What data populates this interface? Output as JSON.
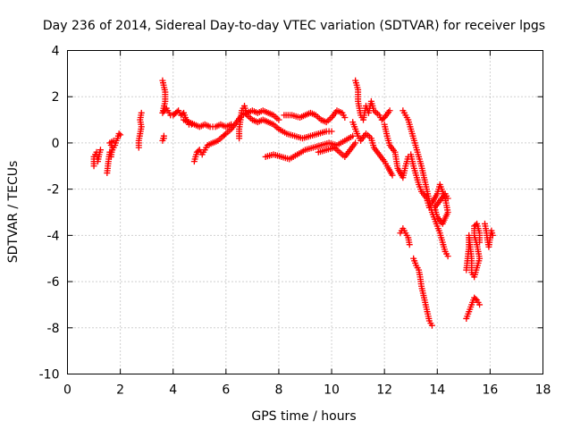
{
  "chart_data": {
    "type": "scatter",
    "title": "Day 236 of 2014, Sidereal Day-to-day VTEC variation (SDTVAR) for receiver lpgs",
    "xlabel": "GPS time / hours",
    "ylabel": "SDTVAR / TECUs",
    "xlim": [
      0,
      18
    ],
    "ylim": [
      -10,
      4
    ],
    "xticks": [
      0,
      2,
      4,
      6,
      8,
      10,
      12,
      14,
      16,
      18
    ],
    "yticks": [
      -10,
      -8,
      -6,
      -4,
      -2,
      0,
      2,
      4
    ],
    "grid": true,
    "marker": "+",
    "series": [
      {
        "name": "SDTVAR",
        "color": "#ff0000",
        "segments": [
          [
            [
              1.0,
              -1.0
            ],
            [
              1.0,
              -0.6
            ],
            [
              1.1,
              -0.4
            ],
            [
              1.15,
              -0.8
            ],
            [
              1.2,
              -0.5
            ],
            [
              1.25,
              -0.3
            ]
          ],
          [
            [
              1.5,
              -1.3
            ],
            [
              1.55,
              -0.8
            ],
            [
              1.6,
              -0.4
            ],
            [
              1.65,
              -0.6
            ],
            [
              1.7,
              -0.2
            ],
            [
              1.6,
              0.0
            ],
            [
              1.75,
              0.1
            ]
          ],
          [
            [
              1.6,
              -0.5
            ],
            [
              1.7,
              -0.3
            ],
            [
              1.8,
              -0.1
            ],
            [
              1.85,
              0.1
            ],
            [
              1.9,
              0.2
            ],
            [
              1.95,
              0.4
            ],
            [
              2.0,
              0.35
            ]
          ],
          [
            [
              2.7,
              -0.2
            ],
            [
              2.7,
              0.1
            ],
            [
              2.75,
              0.4
            ],
            [
              2.8,
              0.7
            ],
            [
              2.75,
              1.0
            ],
            [
              2.8,
              1.3
            ]
          ],
          [
            [
              3.6,
              0.1
            ],
            [
              3.65,
              0.3
            ],
            [
              3.65,
              0.2
            ]
          ],
          [
            [
              3.6,
              2.7
            ],
            [
              3.7,
              2.2
            ],
            [
              3.7,
              1.8
            ],
            [
              3.6,
              1.3
            ],
            [
              3.75,
              1.5
            ],
            [
              3.8,
              1.4
            ],
            [
              3.9,
              1.2
            ],
            [
              4.0,
              1.2
            ],
            [
              4.1,
              1.3
            ],
            [
              4.2,
              1.4
            ],
            [
              4.3,
              1.2
            ],
            [
              4.4,
              1.3
            ],
            [
              4.5,
              1.0
            ],
            [
              4.6,
              0.8
            ],
            [
              4.7,
              0.8
            ]
          ],
          [
            [
              4.8,
              -0.8
            ],
            [
              4.9,
              -0.4
            ],
            [
              5.0,
              -0.3
            ],
            [
              5.1,
              -0.5
            ],
            [
              5.2,
              -0.3
            ],
            [
              5.3,
              -0.1
            ],
            [
              5.5,
              0.0
            ],
            [
              5.7,
              0.1
            ],
            [
              5.9,
              0.3
            ],
            [
              6.0,
              0.4
            ],
            [
              6.2,
              0.6
            ],
            [
              6.4,
              0.9
            ],
            [
              6.6,
              1.2
            ],
            [
              6.8,
              1.3
            ],
            [
              7.0,
              1.4
            ],
            [
              7.2,
              1.3
            ],
            [
              7.4,
              1.4
            ],
            [
              7.6,
              1.3
            ],
            [
              7.8,
              1.2
            ],
            [
              8.0,
              1.0
            ]
          ],
          [
            [
              4.4,
              1.0
            ],
            [
              4.6,
              0.9
            ],
            [
              4.8,
              0.8
            ],
            [
              5.0,
              0.7
            ],
            [
              5.2,
              0.8
            ],
            [
              5.4,
              0.7
            ],
            [
              5.6,
              0.7
            ],
            [
              5.8,
              0.8
            ],
            [
              6.0,
              0.7
            ],
            [
              6.2,
              0.8
            ]
          ],
          [
            [
              6.5,
              0.2
            ],
            [
              6.5,
              0.6
            ],
            [
              6.55,
              1.0
            ],
            [
              6.6,
              1.4
            ],
            [
              6.7,
              1.6
            ],
            [
              6.8,
              1.2
            ],
            [
              7.0,
              1.0
            ],
            [
              7.2,
              0.9
            ],
            [
              7.4,
              1.0
            ],
            [
              7.6,
              0.9
            ],
            [
              7.8,
              0.8
            ],
            [
              8.0,
              0.6
            ],
            [
              8.3,
              0.4
            ],
            [
              8.6,
              0.3
            ],
            [
              8.9,
              0.2
            ],
            [
              9.2,
              0.3
            ],
            [
              9.5,
              0.4
            ],
            [
              9.8,
              0.5
            ],
            [
              10.0,
              0.5
            ]
          ],
          [
            [
              7.5,
              -0.6
            ],
            [
              7.8,
              -0.5
            ],
            [
              8.1,
              -0.6
            ],
            [
              8.4,
              -0.7
            ],
            [
              8.7,
              -0.5
            ],
            [
              9.0,
              -0.3
            ],
            [
              9.3,
              -0.2
            ],
            [
              9.6,
              -0.1
            ],
            [
              9.9,
              0.0
            ],
            [
              10.2,
              -0.1
            ],
            [
              10.5,
              0.1
            ],
            [
              10.8,
              0.3
            ]
          ],
          [
            [
              9.5,
              -0.4
            ],
            [
              9.8,
              -0.3
            ],
            [
              10.1,
              -0.2
            ],
            [
              10.3,
              -0.4
            ],
            [
              10.5,
              -0.6
            ],
            [
              10.7,
              -0.3
            ],
            [
              10.9,
              0.0
            ]
          ],
          [
            [
              8.2,
              1.2
            ],
            [
              8.5,
              1.2
            ],
            [
              8.8,
              1.1
            ],
            [
              9.0,
              1.2
            ],
            [
              9.2,
              1.3
            ],
            [
              9.4,
              1.2
            ],
            [
              9.6,
              1.0
            ],
            [
              9.8,
              0.9
            ],
            [
              10.0,
              1.1
            ],
            [
              10.2,
              1.4
            ],
            [
              10.4,
              1.3
            ],
            [
              10.5,
              1.1
            ]
          ],
          [
            [
              10.9,
              2.7
            ],
            [
              11.0,
              2.3
            ],
            [
              11.0,
              1.8
            ],
            [
              11.05,
              1.5
            ],
            [
              11.1,
              1.2
            ],
            [
              11.2,
              1.0
            ],
            [
              11.3,
              1.6
            ],
            [
              11.4,
              1.3
            ],
            [
              11.5,
              1.8
            ],
            [
              11.6,
              1.4
            ],
            [
              11.8,
              1.2
            ],
            [
              11.9,
              1.0
            ],
            [
              12.0,
              1.1
            ],
            [
              12.2,
              1.4
            ]
          ],
          [
            [
              10.8,
              0.9
            ],
            [
              10.9,
              0.6
            ],
            [
              11.0,
              0.3
            ],
            [
              11.1,
              0.1
            ],
            [
              11.3,
              0.4
            ],
            [
              11.5,
              0.2
            ],
            [
              11.6,
              -0.2
            ],
            [
              11.8,
              -0.5
            ],
            [
              12.0,
              -0.8
            ],
            [
              12.1,
              -1.0
            ],
            [
              12.3,
              -1.4
            ]
          ],
          [
            [
              12.0,
              0.8
            ],
            [
              12.1,
              0.3
            ],
            [
              12.2,
              -0.1
            ],
            [
              12.4,
              -0.4
            ],
            [
              12.5,
              -1.1
            ],
            [
              12.7,
              -1.5
            ],
            [
              12.8,
              -1.0
            ],
            [
              12.9,
              -0.6
            ]
          ],
          [
            [
              12.7,
              1.4
            ],
            [
              12.8,
              1.2
            ],
            [
              12.9,
              1.0
            ],
            [
              13.0,
              0.6
            ],
            [
              13.1,
              0.2
            ],
            [
              13.2,
              -0.2
            ],
            [
              13.3,
              -0.6
            ],
            [
              13.4,
              -1.0
            ],
            [
              13.5,
              -1.5
            ],
            [
              13.6,
              -2.0
            ],
            [
              13.7,
              -2.5
            ],
            [
              13.8,
              -3.0
            ],
            [
              13.9,
              -3.3
            ],
            [
              14.0,
              -3.6
            ],
            [
              14.1,
              -3.9
            ],
            [
              14.2,
              -4.3
            ],
            [
              14.3,
              -4.7
            ],
            [
              14.4,
              -4.9
            ]
          ],
          [
            [
              13.0,
              -0.5
            ],
            [
              13.1,
              -1.0
            ],
            [
              13.2,
              -1.4
            ],
            [
              13.3,
              -1.8
            ],
            [
              13.4,
              -2.1
            ],
            [
              13.6,
              -2.4
            ],
            [
              13.7,
              -2.8
            ],
            [
              13.8,
              -2.6
            ],
            [
              14.0,
              -2.2
            ],
            [
              14.1,
              -1.8
            ],
            [
              14.2,
              -2.1
            ],
            [
              14.3,
              -2.4
            ],
            [
              14.4,
              -3.0
            ],
            [
              14.2,
              -3.5
            ],
            [
              14.0,
              -3.2
            ],
            [
              13.9,
              -2.8
            ],
            [
              14.1,
              -2.5
            ],
            [
              14.3,
              -2.2
            ],
            [
              14.4,
              -2.4
            ]
          ],
          [
            [
              12.6,
              -3.9
            ],
            [
              12.7,
              -3.7
            ],
            [
              12.8,
              -3.9
            ],
            [
              12.9,
              -4.1
            ],
            [
              12.95,
              -4.4
            ]
          ],
          [
            [
              13.1,
              -5.0
            ],
            [
              13.2,
              -5.3
            ],
            [
              13.3,
              -5.5
            ],
            [
              13.35,
              -5.8
            ],
            [
              13.4,
              -6.2
            ],
            [
              13.5,
              -6.7
            ],
            [
              13.6,
              -7.2
            ],
            [
              13.7,
              -7.7
            ],
            [
              13.8,
              -7.9
            ]
          ],
          [
            [
              15.1,
              -5.5
            ],
            [
              15.15,
              -5.0
            ],
            [
              15.2,
              -4.5
            ],
            [
              15.2,
              -4.0
            ],
            [
              15.25,
              -4.5
            ],
            [
              15.3,
              -5.0
            ],
            [
              15.3,
              -5.6
            ],
            [
              15.4,
              -5.8
            ],
            [
              15.5,
              -5.4
            ],
            [
              15.6,
              -5.0
            ],
            [
              15.5,
              -4.4
            ],
            [
              15.4,
              -4.0
            ],
            [
              15.4,
              -3.6
            ],
            [
              15.5,
              -3.5
            ],
            [
              15.6,
              -3.9
            ],
            [
              15.6,
              -4.3
            ]
          ],
          [
            [
              15.1,
              -7.6
            ],
            [
              15.2,
              -7.3
            ],
            [
              15.3,
              -7.0
            ],
            [
              15.4,
              -6.7
            ],
            [
              15.5,
              -6.8
            ],
            [
              15.6,
              -7.0
            ]
          ],
          [
            [
              15.8,
              -3.5
            ],
            [
              15.85,
              -3.8
            ],
            [
              15.9,
              -4.2
            ],
            [
              15.95,
              -4.5
            ],
            [
              16.0,
              -4.1
            ],
            [
              16.05,
              -3.8
            ],
            [
              16.1,
              -4.0
            ]
          ]
        ]
      }
    ]
  }
}
